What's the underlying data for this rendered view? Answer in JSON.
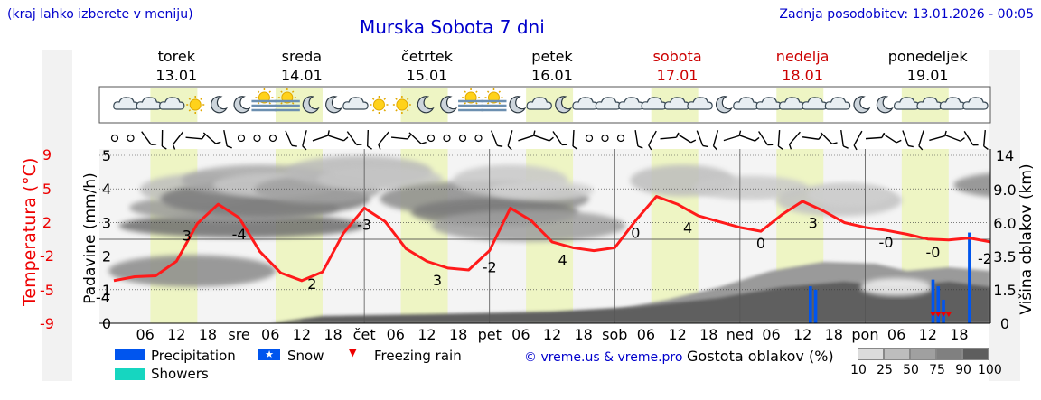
{
  "header": {
    "left_note": "(kraj lahko izberete v meniju)",
    "title": "Murska Sobota 7 dni",
    "updated": "Zadnja posodobitev: 13.01.2026 - 00:05"
  },
  "days": [
    {
      "name": "torek",
      "date": "13.01",
      "weekend": false
    },
    {
      "name": "sreda",
      "date": "14.01",
      "weekend": false
    },
    {
      "name": "četrtek",
      "date": "15.01",
      "weekend": false
    },
    {
      "name": "petek",
      "date": "16.01",
      "weekend": false
    },
    {
      "name": "sobota",
      "date": "17.01",
      "weekend": true
    },
    {
      "name": "nedelja",
      "date": "18.01",
      "weekend": true
    },
    {
      "name": "ponedeljek",
      "date": "19.01",
      "weekend": false
    }
  ],
  "axes": {
    "temperature_label": "Temperatura (°C)",
    "precip_label": "Padavine (mm/h)",
    "cloud_height_label": "Višina oblakov (km)"
  },
  "chart_data": {
    "type": "line",
    "title": "Murska Sobota 7 dni",
    "x_ticks": [
      "06",
      "12",
      "18",
      "sre",
      "06",
      "12",
      "18",
      "čet",
      "06",
      "12",
      "18",
      "pet",
      "06",
      "12",
      "18",
      "sob",
      "06",
      "12",
      "18",
      "ned",
      "06",
      "12",
      "18",
      "pon",
      "06",
      "12",
      "18"
    ],
    "x_hours_total": 168,
    "temperature": {
      "name": "Temperatura",
      "color": "#ff1a1a",
      "unit": "°C",
      "ylim": [
        -9,
        9
      ],
      "ticks": [
        9,
        5,
        2,
        -2,
        -5,
        -9
      ],
      "hours": [
        0,
        4,
        8,
        12,
        16,
        20,
        24,
        28,
        32,
        36,
        40,
        44,
        48,
        52,
        56,
        60,
        64,
        68,
        72,
        76,
        80,
        84,
        88,
        92,
        96,
        100,
        104,
        108,
        112,
        116,
        120,
        124,
        128,
        132,
        136,
        140,
        144,
        148,
        152,
        156,
        160,
        164,
        168
      ],
      "values": [
        -4.6,
        -4.2,
        -4.1,
        -2.6,
        1.3,
        3.3,
        1.9,
        -1.6,
        -3.8,
        -4.6,
        -3.7,
        0.3,
        2.9,
        1.5,
        -1.3,
        -2.6,
        -3.3,
        -3.5,
        -1.5,
        2.9,
        1.6,
        -0.6,
        -1.2,
        -1.5,
        -1.2,
        1.6,
        4.1,
        3.3,
        2.1,
        1.5,
        0.9,
        0.5,
        2.2,
        3.6,
        2.6,
        1.4,
        0.9,
        0.6,
        0.2,
        -0.3,
        -0.4,
        -0.2,
        -0.6
      ],
      "labels": [
        {
          "hour": 0,
          "text": "-4"
        },
        {
          "hour": 14,
          "text": "3"
        },
        {
          "hour": 24,
          "text": "-4"
        },
        {
          "hour": 38,
          "text": "2"
        },
        {
          "hour": 48,
          "text": "-3"
        },
        {
          "hour": 62,
          "text": "3"
        },
        {
          "hour": 72,
          "text": "-2"
        },
        {
          "hour": 86,
          "text": "4"
        },
        {
          "hour": 100,
          "text": "0"
        },
        {
          "hour": 110,
          "text": "4"
        },
        {
          "hour": 124,
          "text": "0"
        },
        {
          "hour": 134,
          "text": "3"
        },
        {
          "hour": 148,
          "text": "-0"
        },
        {
          "hour": 157,
          "text": "-0"
        },
        {
          "hour": 168,
          "text": "-2"
        }
      ]
    },
    "precipitation": {
      "name": "Precipitation",
      "unit": "mm/h",
      "ylim": [
        0,
        5
      ],
      "ticks": [
        0,
        1,
        2,
        3,
        4,
        5
      ],
      "bars": [
        {
          "hour": 133.5,
          "value": 1.1
        },
        {
          "hour": 134.5,
          "value": 1.0
        },
        {
          "hour": 157.0,
          "value": 1.3
        },
        {
          "hour": 158.0,
          "value": 1.1
        },
        {
          "hour": 159.0,
          "value": 0.7
        },
        {
          "hour": 164.0,
          "value": 2.7
        }
      ],
      "freezing_rain_hours": [
        157,
        158,
        159,
        160
      ]
    },
    "cloud_height": {
      "unit": "km",
      "ticks": [
        0,
        1.5,
        3.5,
        6.0,
        9.0,
        14
      ]
    },
    "cloud_density_scale": {
      "label": "Gostota oblakov (%)",
      "steps": [
        10,
        25,
        50,
        75,
        90,
        100
      ],
      "colors": [
        "#dcdcdc",
        "#bdbdbd",
        "#a0a0a0",
        "#808080",
        "#5e5e5e"
      ]
    }
  },
  "legend": {
    "precipitation": "Precipitation",
    "snow": "Snow",
    "freezing_rain": "Freezing rain",
    "showers": "Showers",
    "precip_color": "#0055ee",
    "showers_color": "#16d6c0",
    "freezing_color": "#ee0000"
  },
  "credits": "© vreme.us & vreme.pro"
}
